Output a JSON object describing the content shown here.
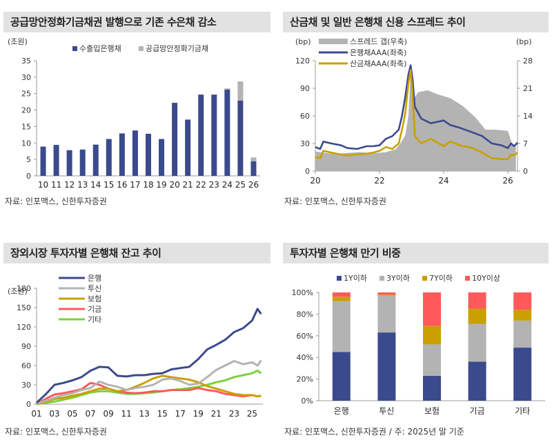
{
  "colors": {
    "navy": "#3b4a8c",
    "gray": "#b3b3b3",
    "gold": "#c9a000",
    "red": "#ff5a5a",
    "green": "#7cd13a",
    "title_bg": "#e2e2e2"
  },
  "chart_data": [
    {
      "id": "chart1",
      "type": "bar",
      "stacked": true,
      "title": "공급망안정화기금채권 발행으로 기존 수은채 감소",
      "unit_label": "(조원)",
      "source": "자료: 인포맥스, 신한투자증권",
      "categories": [
        "10",
        "11",
        "12",
        "13",
        "14",
        "15",
        "16",
        "17",
        "18",
        "19",
        "20",
        "21",
        "22",
        "23",
        "24",
        "25",
        "26"
      ],
      "ylim": [
        0,
        35
      ],
      "yticks": [
        "0",
        "5",
        "10",
        "15",
        "20",
        "25",
        "30",
        "35"
      ],
      "grid": false,
      "legend_position": "top",
      "series": [
        {
          "name": "수출입은행채",
          "color": "#3b4a8c",
          "values": [
            8.9,
            9.4,
            7.8,
            8.0,
            9.5,
            11.2,
            12.9,
            13.8,
            12.8,
            11.2,
            22.2,
            17.1,
            24.7,
            24.7,
            26.2,
            22.9,
            4.4
          ]
        },
        {
          "name": "공급망안정화기금채",
          "color": "#b3b3b3",
          "values": [
            0,
            0,
            0,
            0,
            0,
            0,
            0,
            0,
            0,
            0,
            0,
            0,
            0,
            0,
            0.4,
            5.8,
            1.2
          ]
        }
      ]
    },
    {
      "id": "chart2",
      "type": "area",
      "title": "산금채 및 일반 은행채 신용 스프레드 추이",
      "left_unit": "(bp)",
      "right_unit": "(bp)",
      "source": "자료: 인포맥스, 신한투자증권",
      "xlim": [
        20,
        26.3
      ],
      "xticks": [
        "20",
        "22",
        "24",
        "26"
      ],
      "ylim_left": [
        0,
        120
      ],
      "yticks_left": [
        "0",
        "30",
        "60",
        "90",
        "120"
      ],
      "ylim_right": [
        0,
        28
      ],
      "yticks_right": [
        "0",
        "7",
        "14",
        "21",
        "28"
      ],
      "grid": false,
      "legend_position": "top-left",
      "series": [
        {
          "name": "스프레드 갭(우축)",
          "kind": "area",
          "axis": "right",
          "color": "#b3b3b3",
          "x": [
            20.0,
            20.3,
            20.6,
            21.0,
            21.4,
            21.8,
            22.2,
            22.5,
            22.65,
            22.8,
            22.9,
            22.97,
            23.05,
            23.2,
            23.5,
            23.8,
            24.0,
            24.2,
            24.6,
            25.0,
            25.3,
            25.6,
            26.0,
            26.15,
            26.25
          ],
          "y": [
            5.0,
            4.6,
            4.3,
            4.6,
            4.8,
            4.5,
            4.8,
            5.5,
            7.0,
            9.0,
            14.0,
            25.0,
            18.0,
            20.0,
            20.5,
            19.5,
            19.0,
            18.5,
            16.5,
            13.5,
            10.5,
            10.5,
            10.2,
            6.5,
            6.0
          ]
        },
        {
          "name": "은행채AAA(좌축)",
          "kind": "line",
          "axis": "left",
          "color": "#3b4a8c",
          "x": [
            20.0,
            20.15,
            20.25,
            20.5,
            20.8,
            21.0,
            21.3,
            21.6,
            21.8,
            22.0,
            22.2,
            22.4,
            22.6,
            22.7,
            22.8,
            22.9,
            22.97,
            23.03,
            23.1,
            23.3,
            23.6,
            24.0,
            24.2,
            24.5,
            24.9,
            25.2,
            25.5,
            25.8,
            26.0,
            26.1,
            26.2,
            26.3
          ],
          "y": [
            26,
            24,
            32,
            30,
            28,
            25,
            24,
            27,
            27,
            28,
            35,
            38,
            45,
            60,
            80,
            105,
            115,
            100,
            70,
            57,
            52,
            55,
            50,
            47,
            42,
            38,
            30,
            28,
            25,
            30,
            27,
            31
          ]
        },
        {
          "name": "산금채AAA(좌축)",
          "kind": "line",
          "axis": "left",
          "color": "#c9a000",
          "x": [
            20.0,
            20.15,
            20.25,
            20.5,
            20.8,
            21.0,
            21.3,
            21.6,
            21.8,
            22.0,
            22.2,
            22.4,
            22.6,
            22.7,
            22.8,
            22.9,
            22.97,
            23.03,
            23.1,
            23.3,
            23.6,
            24.0,
            24.2,
            24.5,
            24.9,
            25.2,
            25.5,
            25.8,
            26.0,
            26.1,
            26.2,
            26.3
          ],
          "y": [
            15,
            14,
            22,
            20,
            18,
            17,
            18,
            19,
            20,
            22,
            26,
            24,
            30,
            45,
            62,
            95,
            110,
            85,
            38,
            30,
            35,
            27,
            32,
            28,
            25,
            20,
            14,
            13,
            13,
            18,
            17,
            20
          ]
        }
      ]
    },
    {
      "id": "chart3",
      "type": "line",
      "title": "장외시장 투자자별 은행채 잔고 추이",
      "unit_label": "(조원)",
      "source": "자료: 인포맥스, 신한투자증권",
      "xlim": [
        1,
        26.2
      ],
      "xticks": [
        "01",
        "03",
        "05",
        "07",
        "09",
        "11",
        "13",
        "15",
        "17",
        "19",
        "21",
        "23",
        "25"
      ],
      "ylim": [
        0,
        180
      ],
      "yticks": [
        "0",
        "30",
        "60",
        "90",
        "120",
        "150",
        "180"
      ],
      "grid": false,
      "legend_position": "top-left",
      "series": [
        {
          "name": "은행",
          "color": "#3b4a8c",
          "x": [
            1,
            2,
            3,
            4,
            5,
            6,
            7,
            8,
            9,
            10,
            11,
            12,
            13,
            14,
            15,
            16,
            17,
            18,
            19,
            20,
            21,
            22,
            23,
            24,
            25,
            25.6,
            26
          ],
          "y": [
            2,
            15,
            30,
            33,
            37,
            42,
            52,
            58,
            57,
            44,
            43,
            45,
            45,
            47,
            48,
            54,
            56,
            58,
            70,
            85,
            92,
            100,
            112,
            118,
            130,
            148,
            140
          ]
        },
        {
          "name": "투신",
          "color": "#b3b3b3",
          "x": [
            1,
            2,
            3,
            4,
            5,
            6,
            7,
            8,
            9,
            10,
            11,
            12,
            13,
            14,
            15,
            16,
            17,
            18,
            19,
            20,
            21,
            22,
            23,
            24,
            25,
            25.6,
            26
          ],
          "y": [
            1,
            5,
            10,
            14,
            17,
            22,
            25,
            35,
            30,
            27,
            22,
            25,
            27,
            30,
            38,
            40,
            36,
            30,
            32,
            42,
            53,
            60,
            67,
            62,
            65,
            60,
            68
          ]
        },
        {
          "name": "보험",
          "color": "#c9a000",
          "x": [
            1,
            2,
            3,
            4,
            5,
            6,
            7,
            8,
            9,
            10,
            11,
            12,
            13,
            14,
            15,
            16,
            17,
            18,
            19,
            20,
            21,
            22,
            23,
            24,
            25,
            25.6,
            26
          ],
          "y": [
            0,
            4,
            8,
            10,
            13,
            16,
            20,
            24,
            24,
            20,
            22,
            27,
            33,
            40,
            44,
            42,
            40,
            38,
            34,
            28,
            24,
            20,
            16,
            14,
            14,
            12,
            13
          ]
        },
        {
          "name": "기금",
          "color": "#ff5a5a",
          "x": [
            1,
            2,
            3,
            4,
            5,
            6,
            7,
            8,
            9,
            10,
            11,
            12,
            13,
            14,
            15,
            16,
            17,
            18,
            19,
            20,
            21,
            22,
            23,
            24,
            25,
            25.6,
            26
          ],
          "y": [
            0,
            8,
            15,
            17,
            20,
            23,
            33,
            30,
            24,
            20,
            18,
            17,
            18,
            20,
            20,
            22,
            22,
            22,
            25,
            22,
            20,
            16,
            14,
            12,
            14,
            12,
            13
          ]
        },
        {
          "name": "기타",
          "color": "#7cd13a",
          "x": [
            1,
            2,
            3,
            4,
            5,
            6,
            7,
            8,
            9,
            10,
            11,
            12,
            13,
            14,
            15,
            16,
            17,
            18,
            19,
            20,
            21,
            22,
            23,
            24,
            25,
            25.6,
            26
          ],
          "y": [
            0,
            2,
            4,
            7,
            10,
            14,
            18,
            20,
            20,
            18,
            16,
            16,
            17,
            18,
            20,
            22,
            23,
            25,
            27,
            30,
            34,
            37,
            42,
            45,
            48,
            52,
            48
          ]
        }
      ]
    },
    {
      "id": "chart4",
      "type": "bar",
      "stacked": true,
      "title": "투자자별 은행채 만기 비중",
      "source": "자료: 인포맥스, 신한투자증권 / 주: 2025년 말 기준",
      "categories": [
        "은행",
        "투신",
        "보험",
        "기금",
        "기타"
      ],
      "ylim": [
        0,
        100
      ],
      "yticks": [
        "0%",
        "20%",
        "40%",
        "60%",
        "80%",
        "100%"
      ],
      "grid": false,
      "legend_position": "top",
      "series": [
        {
          "name": "1Y이하",
          "color": "#3b4a8c",
          "values": [
            45,
            63,
            23,
            36,
            49
          ]
        },
        {
          "name": "3Y이하",
          "color": "#b3b3b3",
          "values": [
            47,
            34,
            29,
            35,
            25
          ]
        },
        {
          "name": "7Y이하",
          "color": "#c9a000",
          "values": [
            4,
            1,
            17,
            14,
            10
          ]
        },
        {
          "name": "10Y이상",
          "color": "#ff5a5a",
          "values": [
            4,
            2,
            31,
            15,
            16
          ]
        }
      ]
    }
  ]
}
